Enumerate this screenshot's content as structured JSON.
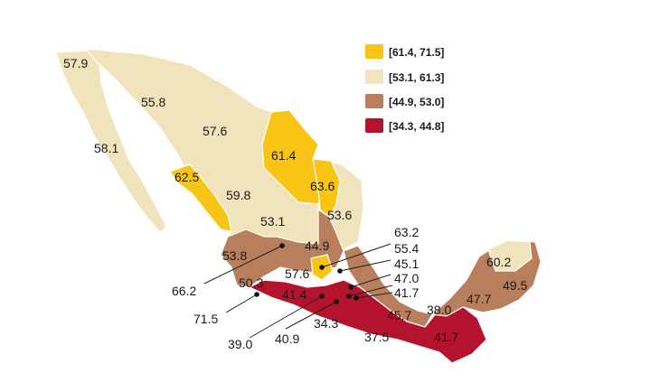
{
  "legend": [
    {
      "label": "[61.4, 71.5]",
      "color": "#F9C515"
    },
    {
      "label": "[53.1, 61.3]",
      "color": "#F1E4BC"
    },
    {
      "label": "[44.9, 53.0]",
      "color": "#B97E5C"
    },
    {
      "label": "[34.3, 44.8]",
      "color": "#B4132D"
    }
  ],
  "state_values": [
    {
      "value": "57.9",
      "class_color": "#F1E4BC"
    },
    {
      "value": "55.8",
      "class_color": "#F1E4BC"
    },
    {
      "value": "57.6",
      "class_color": "#F1E4BC"
    },
    {
      "value": "58.1",
      "class_color": "#F1E4BC"
    },
    {
      "value": "61.4",
      "class_color": "#F9C515"
    },
    {
      "value": "62.5",
      "class_color": "#F9C515"
    },
    {
      "value": "63.6",
      "class_color": "#F9C515"
    },
    {
      "value": "59.8",
      "class_color": "#F1E4BC"
    },
    {
      "value": "53.1",
      "class_color": "#F1E4BC"
    },
    {
      "value": "53.6",
      "class_color": "#F1E4BC"
    },
    {
      "value": "53.8",
      "class_color": "#F1E4BC"
    },
    {
      "value": "44.9",
      "class_color": "#B97E5C"
    },
    {
      "value": "57.6",
      "class_color": "#F1E4BC"
    },
    {
      "value": "50.3",
      "class_color": "#B97E5C"
    },
    {
      "value": "41.4",
      "class_color": "#B4132D"
    },
    {
      "value": "34.3",
      "class_color": "#B4132D"
    },
    {
      "value": "45.7",
      "class_color": "#B97E5C"
    },
    {
      "value": "38.0",
      "class_color": "#B4132D"
    },
    {
      "value": "37.5",
      "class_color": "#B4132D"
    },
    {
      "value": "41.7",
      "class_color": "#B4132D"
    },
    {
      "value": "47.7",
      "class_color": "#B97E5C"
    },
    {
      "value": "49.5",
      "class_color": "#B97E5C"
    },
    {
      "value": "60.2",
      "class_color": "#F1E4BC"
    }
  ],
  "callouts": [
    {
      "value": "63.2",
      "class_color": "#F9C515"
    },
    {
      "value": "55.4",
      "class_color": "#F1E4BC"
    },
    {
      "value": "45.1",
      "class_color": "#B97E5C"
    },
    {
      "value": "47.0",
      "class_color": "#B97E5C"
    },
    {
      "value": "41.7",
      "class_color": "#B4132D"
    },
    {
      "value": "66.2",
      "class_color": "#F9C515"
    },
    {
      "value": "71.5",
      "class_color": "#F9C515"
    },
    {
      "value": "39.0",
      "class_color": "#B4132D"
    },
    {
      "value": "40.9",
      "class_color": "#B4132D"
    }
  ]
}
